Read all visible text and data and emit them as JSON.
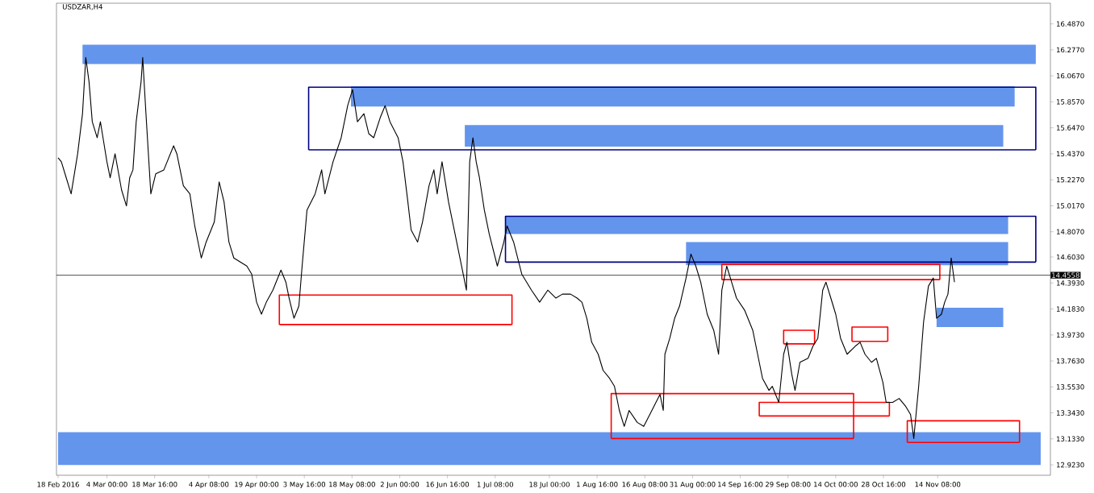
{
  "chart_data": {
    "type": "line",
    "title": "USDZAR,H4",
    "xlim": [
      "2016-02-17T12:00",
      "2016-12-19"
    ],
    "ylim": [
      12.839,
      16.654
    ],
    "xticks": [
      {
        "value": "2016-02-18T00:00",
        "label": "18 Feb 2016"
      },
      {
        "value": "2016-03-04T00:00",
        "label": "4 Mar 00:00"
      },
      {
        "value": "2016-03-18T16:00",
        "label": "18 Mar 16:00"
      },
      {
        "value": "2016-04-04T08:00",
        "label": "4 Apr 08:00"
      },
      {
        "value": "2016-04-19T00:00",
        "label": "19 Apr 00:00"
      },
      {
        "value": "2016-05-03T16:00",
        "label": "3 May 16:00"
      },
      {
        "value": "2016-05-18T08:00",
        "label": "18 May 08:00"
      },
      {
        "value": "2016-06-02T00:00",
        "label": "2 Jun 00:00"
      },
      {
        "value": "2016-06-16T16:00",
        "label": "16 Jun 16:00"
      },
      {
        "value": "2016-07-01T08:00",
        "label": "1 Jul 08:00"
      },
      {
        "value": "2016-07-18T00:00",
        "label": "18 Jul 00:00"
      },
      {
        "value": "2016-08-01T16:00",
        "label": "1 Aug 16:00"
      },
      {
        "value": "2016-08-16T08:00",
        "label": "16 Aug 08:00"
      },
      {
        "value": "2016-08-31T00:00",
        "label": "31 Aug 00:00"
      },
      {
        "value": "2016-09-14T16:00",
        "label": "14 Sep 16:00"
      },
      {
        "value": "2016-09-29T08:00",
        "label": "29 Sep 08:00"
      },
      {
        "value": "2016-10-14T00:00",
        "label": "14 Oct 00:00"
      },
      {
        "value": "2016-10-28T16:00",
        "label": "28 Oct 16:00"
      },
      {
        "value": "2016-11-14T08:00",
        "label": "14 Nov 08:00"
      }
    ],
    "yticks": [
      {
        "value": 16.487,
        "label": "16.4870"
      },
      {
        "value": 16.277,
        "label": "16.2770"
      },
      {
        "value": 16.067,
        "label": "16.0670"
      },
      {
        "value": 15.857,
        "label": "15.8570"
      },
      {
        "value": 15.647,
        "label": "15.6470"
      },
      {
        "value": 15.437,
        "label": "15.4370"
      },
      {
        "value": 15.227,
        "label": "15.2270"
      },
      {
        "value": 15.017,
        "label": "15.0170"
      },
      {
        "value": 14.807,
        "label": "14.8070"
      },
      {
        "value": 14.603,
        "label": "14.6030"
      },
      {
        "value": 14.393,
        "label": "14.3930"
      },
      {
        "value": 14.183,
        "label": "14.1830"
      },
      {
        "value": 13.973,
        "label": "13.9730"
      },
      {
        "value": 13.763,
        "label": "13.7630"
      },
      {
        "value": 13.553,
        "label": "13.5530"
      },
      {
        "value": 13.343,
        "label": "13.3430"
      },
      {
        "value": 13.133,
        "label": "13.1330"
      },
      {
        "value": 12.923,
        "label": "12.9230"
      }
    ],
    "ref_lines": [
      {
        "axis": "y",
        "value": 14.4558,
        "label": "14.4558",
        "color": "#000000"
      }
    ],
    "series": [
      {
        "type": "area",
        "color": "#6495ed",
        "x": [
          "2016-02-25T12:00",
          "2016-12-14T12:00",
          "2016-12-14T12:00",
          "2016-02-25T12:00"
        ],
        "values": [
          16.319,
          16.319,
          16.163,
          16.163
        ]
      },
      {
        "type": "area",
        "color": "#6495ed",
        "x": [
          "2016-05-18",
          "2016-12-08",
          "2016-12-08",
          "2016-05-18"
        ],
        "values": [
          15.981,
          15.981,
          15.819,
          15.819
        ]
      },
      {
        "type": "area",
        "color": "#6495ed",
        "x": [
          "2016-06-22",
          "2016-12-04T12:00",
          "2016-12-04T12:00",
          "2016-06-22"
        ],
        "values": [
          15.67,
          15.67,
          15.495,
          15.495
        ]
      },
      {
        "type": "area",
        "color": "#6495ed",
        "x": [
          "2016-07-04T12:00",
          "2016-12-06",
          "2016-12-06",
          "2016-07-04T12:00"
        ],
        "values": [
          14.932,
          14.932,
          14.789,
          14.789
        ]
      },
      {
        "type": "area",
        "color": "#6495ed",
        "x": [
          "2016-08-29",
          "2016-12-06",
          "2016-12-06",
          "2016-08-29"
        ],
        "values": [
          14.724,
          14.724,
          14.536,
          14.536
        ]
      },
      {
        "type": "area",
        "color": "#6495ed",
        "x": [
          "2016-11-14",
          "2016-12-04T12:00",
          "2016-12-04T12:00",
          "2016-11-14"
        ],
        "values": [
          14.193,
          14.193,
          14.037,
          14.037
        ]
      },
      {
        "type": "area",
        "color": "#6495ed",
        "x": [
          "2016-02-18",
          "2016-12-16",
          "2016-12-16",
          "2016-02-18"
        ],
        "values": [
          13.188,
          13.188,
          12.922,
          12.922
        ]
      },
      {
        "type": "line",
        "color": "#000080",
        "x": [
          "2016-05-05",
          "2016-05-05",
          "2016-12-14T12:00",
          "2016-12-14T12:00"
        ],
        "values": [
          15.469,
          15.975,
          15.975,
          15.469
        ]
      },
      {
        "type": "line",
        "color": "#000080",
        "x": [
          "2016-05-05",
          "2016-12-14T12:00"
        ],
        "values": [
          15.469,
          15.469
        ]
      },
      {
        "type": "line",
        "color": "#000080",
        "x": [
          "2016-07-04T12:00",
          "2016-07-04T12:00",
          "2016-12-14T12:00",
          "2016-12-14T12:00"
        ],
        "values": [
          14.562,
          14.932,
          14.932,
          14.562
        ]
      },
      {
        "type": "line",
        "color": "#000080",
        "x": [
          "2016-07-04T12:00",
          "2016-12-14T12:00"
        ],
        "values": [
          14.562,
          14.562
        ]
      },
      {
        "type": "line",
        "color": "#ff0000",
        "x": [
          "2016-04-26",
          "2016-04-26",
          "2016-07-06T12:00",
          "2016-07-06T12:00"
        ],
        "values": [
          14.057,
          14.296,
          14.296,
          14.057
        ]
      },
      {
        "type": "line",
        "color": "#ff0000",
        "x": [
          "2016-04-26",
          "2016-07-06T12:00"
        ],
        "values": [
          14.057,
          14.057
        ]
      },
      {
        "type": "line",
        "color": "#ff0000",
        "x": [
          "2016-09-09",
          "2016-09-09",
          "2016-11-15",
          "2016-11-15"
        ],
        "values": [
          14.42,
          14.543,
          14.543,
          14.42
        ]
      },
      {
        "type": "line",
        "color": "#ff0000",
        "x": [
          "2016-09-09",
          "2016-11-15"
        ],
        "values": [
          14.42,
          14.42
        ]
      },
      {
        "type": "line",
        "color": "#ff0000",
        "x": [
          "2016-09-28",
          "2016-09-28",
          "2016-10-07T12:00",
          "2016-10-07T12:00"
        ],
        "values": [
          13.901,
          14.011,
          14.011,
          13.901
        ]
      },
      {
        "type": "line",
        "color": "#ff0000",
        "x": [
          "2016-09-28",
          "2016-10-07T12:00"
        ],
        "values": [
          13.901,
          13.901
        ]
      },
      {
        "type": "line",
        "color": "#ff0000",
        "x": [
          "2016-10-19",
          "2016-10-19",
          "2016-10-30",
          "2016-10-30"
        ],
        "values": [
          13.921,
          14.037,
          14.037,
          13.921
        ]
      },
      {
        "type": "line",
        "color": "#ff0000",
        "x": [
          "2016-10-19",
          "2016-10-30"
        ],
        "values": [
          13.921,
          13.921
        ]
      },
      {
        "type": "line",
        "color": "#ff0000",
        "x": [
          "2016-08-06",
          "2016-08-06",
          "2016-10-19T12:00",
          "2016-10-19T12:00"
        ],
        "values": [
          13.136,
          13.499,
          13.499,
          13.136
        ]
      },
      {
        "type": "line",
        "color": "#ff0000",
        "x": [
          "2016-08-06",
          "2016-10-19T12:00"
        ],
        "values": [
          13.136,
          13.136
        ]
      },
      {
        "type": "line",
        "color": "#ff0000",
        "x": [
          "2016-09-20T12:00",
          "2016-09-20T12:00",
          "2016-10-30T12:00",
          "2016-10-30T12:00"
        ],
        "values": [
          13.318,
          13.428,
          13.428,
          13.318
        ]
      },
      {
        "type": "line",
        "color": "#ff0000",
        "x": [
          "2016-09-20T12:00",
          "2016-10-30T12:00"
        ],
        "values": [
          13.318,
          13.318
        ]
      },
      {
        "type": "line",
        "color": "#ff0000",
        "x": [
          "2016-11-05",
          "2016-11-05",
          "2016-12-09T12:00",
          "2016-12-09T12:00"
        ],
        "values": [
          13.104,
          13.279,
          13.279,
          13.104
        ]
      },
      {
        "type": "line",
        "color": "#ff0000",
        "x": [
          "2016-11-05",
          "2016-12-09T12:00"
        ],
        "values": [
          13.104,
          13.104
        ]
      },
      {
        "color": "#000000",
        "x": [
          "2016-02-18",
          "2016-02-19",
          "2016-02-20T12:00",
          "2016-02-22",
          "2016-02-23",
          "2016-02-24",
          "2016-02-25T12:00",
          "2016-02-26T12:00",
          "2016-02-27T12:00",
          "2016-02-28T12:00",
          "2016-03-01",
          "2016-03-02",
          "2016-03-03",
          "2016-03-04",
          "2016-03-05",
          "2016-03-06T12:00",
          "2016-03-08T12:00",
          "2016-03-10",
          "2016-03-11",
          "2016-03-12",
          "2016-03-13",
          "2016-03-14T12:00",
          "2016-03-15",
          "2016-03-16",
          "2016-03-17T12:00",
          "2016-03-19",
          "2016-03-21T12:00",
          "2016-03-24T12:00",
          "2016-03-25T12:00",
          "2016-03-27T12:00",
          "2016-03-29T12:00",
          "2016-03-31",
          "2016-04-02",
          "2016-04-03T12:00",
          "2016-04-06",
          "2016-04-07T12:00",
          "2016-04-09",
          "2016-04-10T12:00",
          "2016-04-12",
          "2016-04-14",
          "2016-04-16",
          "2016-04-17T12:00",
          "2016-04-19",
          "2016-04-20T12:00",
          "2016-04-22",
          "2016-04-24",
          "2016-04-26T12:00",
          "2016-04-28",
          "2016-04-29",
          "2016-04-30T12:00",
          "2016-05-02",
          "2016-05-03",
          "2016-05-04T12:00",
          "2016-05-07",
          "2016-05-09",
          "2016-05-10",
          "2016-05-12T12:00",
          "2016-05-15",
          "2016-05-17",
          "2016-05-18T12:00",
          "2016-05-20",
          "2016-05-22",
          "2016-05-23T12:00",
          "2016-05-25",
          "2016-05-27",
          "2016-05-28T12:00",
          "2016-05-30",
          "2016-06-01T12:00",
          "2016-06-03",
          "2016-06-04T12:00",
          "2016-06-05T12:00",
          "2016-06-07T12:00",
          "2016-06-09",
          "2016-06-11",
          "2016-06-12T12:00",
          "2016-06-13T12:00",
          "2016-06-15",
          "2016-06-17",
          "2016-06-19",
          "2016-06-21T12:00",
          "2016-06-22T12:00",
          "2016-06-23T12:00",
          "2016-06-24T12:00",
          "2016-06-25T12:00",
          "2016-06-26T12:00",
          "2016-06-28",
          "2016-06-29T12:00",
          "2016-07-02",
          "2016-07-04",
          "2016-07-05",
          "2016-07-07",
          "2016-07-09T12:00",
          "2016-07-12T12:00",
          "2016-07-15",
          "2016-07-17T12:00",
          "2016-07-20",
          "2016-07-22",
          "2016-07-24T12:00",
          "2016-07-26T12:00",
          "2016-07-28",
          "2016-07-29T12:00",
          "2016-07-31",
          "2016-08-02",
          "2016-08-03T12:00",
          "2016-08-05T12:00",
          "2016-08-07",
          "2016-08-08T12:00",
          "2016-08-10",
          "2016-08-11T12:00",
          "2016-08-14",
          "2016-08-16",
          "2016-08-18T12:00",
          "2016-08-21",
          "2016-08-22",
          "2016-08-22T12:00",
          "2016-08-24",
          "2016-08-25T12:00",
          "2016-08-27",
          "2016-08-29",
          "2016-08-30T12:00",
          "2016-09-01",
          "2016-09-02T12:00",
          "2016-09-04T12:00",
          "2016-09-06T12:00",
          "2016-09-08",
          "2016-09-09",
          "2016-09-10T12:00",
          "2016-09-12",
          "2016-09-13T12:00",
          "2016-09-16",
          "2016-09-18T12:00",
          "2016-09-20",
          "2016-09-21T12:00",
          "2016-09-23T12:00",
          "2016-09-24T12:00",
          "2016-09-26T12:00",
          "2016-09-28",
          "2016-09-29",
          "2016-09-30T12:00",
          "2016-10-01T12:00",
          "2016-10-03",
          "2016-10-05T12:00",
          "2016-10-07",
          "2016-10-08T12:00",
          "2016-10-10",
          "2016-10-11",
          "2016-10-12T12:00",
          "2016-10-14",
          "2016-10-15T12:00",
          "2016-10-17T12:00",
          "2016-10-20",
          "2016-10-21T12:00",
          "2016-10-23",
          "2016-10-25",
          "2016-10-26T12:00",
          "2016-10-28T12:00",
          "2016-10-29T12:00",
          "2016-10-31T12:00",
          "2016-11-02T12:00",
          "2016-11-04T12:00",
          "2016-11-06",
          "2016-11-07",
          "2016-11-08T12:00",
          "2016-11-10",
          "2016-11-11T12:00",
          "2016-11-13",
          "2016-11-14",
          "2016-11-15T12:00",
          "2016-11-16T12:00",
          "2016-11-17T12:00",
          "2016-11-18T12:00",
          "2016-11-19T12:00"
        ],
        "values": [
          15.405,
          15.372,
          15.243,
          15.113,
          15.275,
          15.437,
          15.761,
          16.215,
          16.02,
          15.696,
          15.567,
          15.696,
          15.534,
          15.372,
          15.243,
          15.437,
          15.145,
          15.016,
          15.243,
          15.307,
          15.696,
          16.02,
          16.215,
          15.761,
          15.113,
          15.275,
          15.307,
          15.502,
          15.437,
          15.178,
          15.113,
          14.854,
          14.595,
          14.724,
          14.886,
          15.21,
          15.048,
          14.724,
          14.595,
          14.562,
          14.53,
          14.465,
          14.238,
          14.141,
          14.238,
          14.335,
          14.497,
          14.4,
          14.271,
          14.108,
          14.206,
          14.53,
          14.983,
          15.113,
          15.307,
          15.113,
          15.372,
          15.567,
          15.826,
          15.956,
          15.696,
          15.761,
          15.599,
          15.567,
          15.729,
          15.826,
          15.696,
          15.567,
          15.372,
          15.048,
          14.821,
          14.724,
          14.886,
          15.178,
          15.307,
          15.113,
          15.372,
          15.048,
          14.789,
          14.465,
          14.335,
          15.372,
          15.567,
          15.372,
          15.243,
          14.983,
          14.789,
          14.53,
          14.724,
          14.854,
          14.724,
          14.465,
          14.335,
          14.238,
          14.335,
          14.271,
          14.303,
          14.303,
          14.271,
          14.238,
          14.108,
          13.914,
          13.817,
          13.687,
          13.622,
          13.558,
          13.363,
          13.234,
          13.363,
          13.266,
          13.234,
          13.363,
          13.493,
          13.363,
          13.817,
          13.946,
          14.108,
          14.206,
          14.433,
          14.627,
          14.53,
          14.4,
          14.141,
          14.011,
          13.817,
          14.335,
          14.53,
          14.4,
          14.271,
          14.173,
          14.011,
          13.817,
          13.622,
          13.525,
          13.558,
          13.428,
          13.817,
          13.914,
          13.655,
          13.525,
          13.752,
          13.784,
          13.882,
          13.946,
          14.335,
          14.4,
          14.271,
          14.141,
          13.946,
          13.817,
          13.882,
          13.914,
          13.817,
          13.752,
          13.784,
          13.59,
          13.428,
          13.428,
          13.46,
          13.396,
          13.331,
          13.136,
          13.558,
          14.076,
          14.368,
          14.433,
          14.108,
          14.141,
          14.238,
          14.303,
          14.595,
          14.4
        ]
      }
    ]
  }
}
